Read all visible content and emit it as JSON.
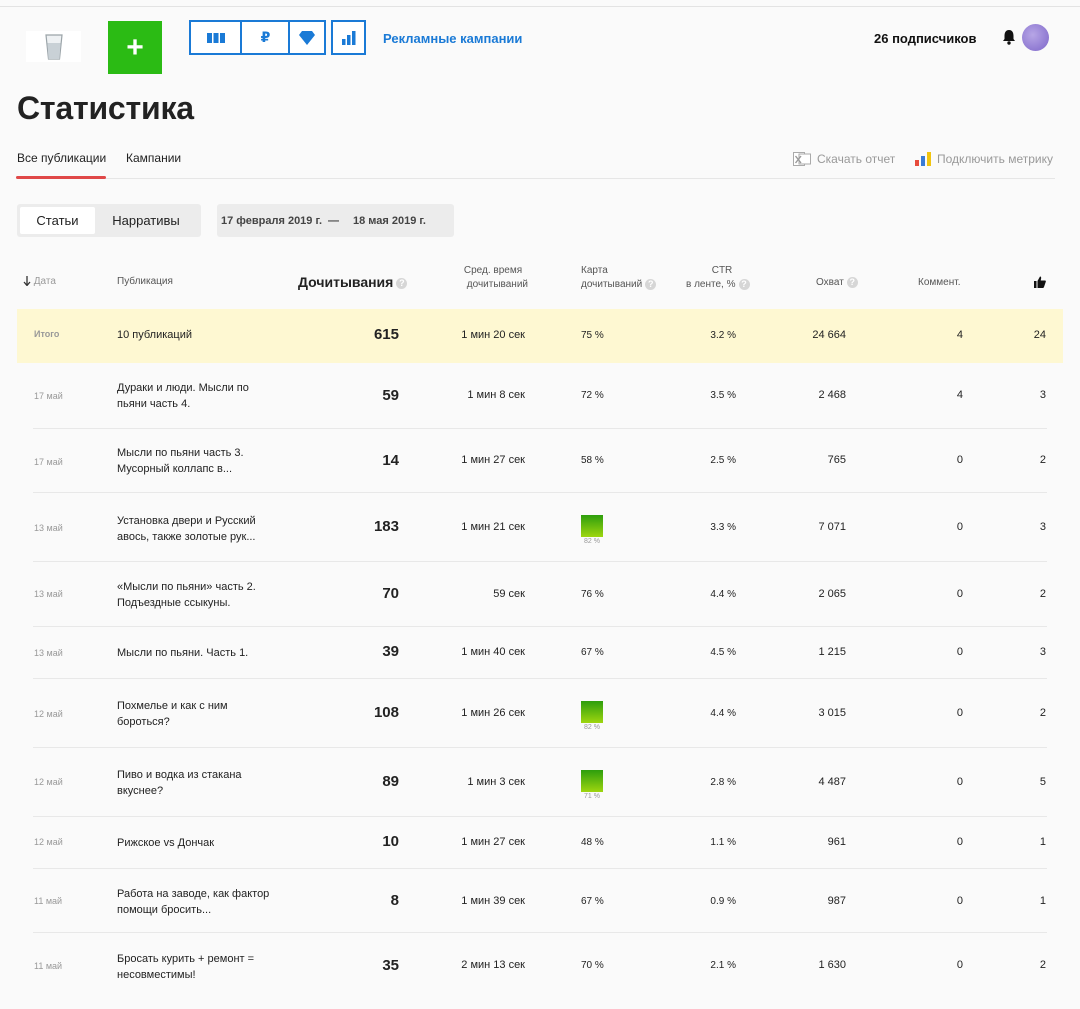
{
  "header": {
    "logo_icon": "glass-icon",
    "add_label": "+",
    "tools": [
      "bars-icon",
      "ruble-icon",
      "diamond-icon",
      "chart-icon"
    ],
    "ruble_label": "₽",
    "ads_link": "Рекламные кампании",
    "subscribers": "26 подписчиков"
  },
  "page": {
    "title": "Статистика"
  },
  "tabs": {
    "all": "Все публикации",
    "campaigns": "Кампании"
  },
  "actions": {
    "download": "Скачать отчет",
    "metrika": "Подключить метрику"
  },
  "filter": {
    "articles": "Статьи",
    "narratives": "Нарративы",
    "date_from": "17 февраля 2019 г.",
    "date_sep": "—",
    "date_to": "18 мая 2019 г."
  },
  "columns": {
    "date": "Дата",
    "publication": "Публикация",
    "reads": "Дочитывания",
    "avg_time_1": "Сред. время",
    "avg_time_2": "дочитываний",
    "map_1": "Карта",
    "map_2": "дочитываний",
    "ctr_1": "CTR",
    "ctr_2": "в ленте, %",
    "reach": "Охват",
    "comments": "Коммент."
  },
  "total": {
    "label": "Итого",
    "title": "10 публикаций",
    "reads": "615",
    "time": "1 мин 20 сек",
    "map": "75 %",
    "ctr": "3.2 %",
    "reach": "24 664",
    "comments": "4",
    "likes": "24"
  },
  "rows": [
    {
      "date": "17 май",
      "title": "Дураки и люди. Мысли по пьяни часть 4.",
      "reads": "59",
      "time": "1 мин 8 сек",
      "map": "72 %",
      "ctr": "3.5 %",
      "reach": "2 468",
      "comments": "4",
      "likes": "3"
    },
    {
      "date": "17 май",
      "title": "Мысли по пьяни часть 3. Мусорный коллапс в...",
      "reads": "14",
      "time": "1 мин 27 сек",
      "map": "58 %",
      "ctr": "2.5 %",
      "reach": "765",
      "comments": "0",
      "likes": "2"
    },
    {
      "date": "13 май",
      "title": "Установка двери и Русский авось, также золотые рук...",
      "reads": "183",
      "time": "1 мин 21 сек",
      "map": "82 %",
      "ctr": "3.3 %",
      "reach": "7 071",
      "comments": "0",
      "likes": "3"
    },
    {
      "date": "13 май",
      "title": "«Мысли по пьяни» часть 2. Подъездные ссыкуны.",
      "reads": "70",
      "time": "59 сек",
      "map": "76 %",
      "ctr": "4.4 %",
      "reach": "2 065",
      "comments": "0",
      "likes": "2"
    },
    {
      "date": "13 май",
      "title": "Мысли по пьяни. Часть 1.",
      "reads": "39",
      "time": "1 мин 40 сек",
      "map": "67 %",
      "ctr": "4.5 %",
      "reach": "1 215",
      "comments": "0",
      "likes": "3"
    },
    {
      "date": "12 май",
      "title": "Похмелье и как с ним бороться?",
      "reads": "108",
      "time": "1 мин 26 сек",
      "map": "82 %",
      "ctr": "4.4 %",
      "reach": "3 015",
      "comments": "0",
      "likes": "2"
    },
    {
      "date": "12 май",
      "title": "Пиво и водка из стакана вкуснее?",
      "reads": "89",
      "time": "1 мин 3 сек",
      "map": "71 %",
      "ctr": "2.8 %",
      "reach": "4 487",
      "comments": "0",
      "likes": "5"
    },
    {
      "date": "12 май",
      "title": "Рижское vs Дончак",
      "reads": "10",
      "time": "1 мин 27 сек",
      "map": "48 %",
      "ctr": "1.1 %",
      "reach": "961",
      "comments": "0",
      "likes": "1"
    },
    {
      "date": "11 май",
      "title": "Работа на заводе, как фактор помощи бросить...",
      "reads": "8",
      "time": "1 мин 39 сек",
      "map": "67 %",
      "ctr": "0.9 %",
      "reach": "987",
      "comments": "0",
      "likes": "1"
    },
    {
      "date": "11 май",
      "title": "Бросать курить + ремонт = несовместимы!",
      "reads": "35",
      "time": "2 мин 13 сек",
      "map": "70 %",
      "ctr": "2.1 %",
      "reach": "1 630",
      "comments": "0",
      "likes": "2"
    }
  ]
}
